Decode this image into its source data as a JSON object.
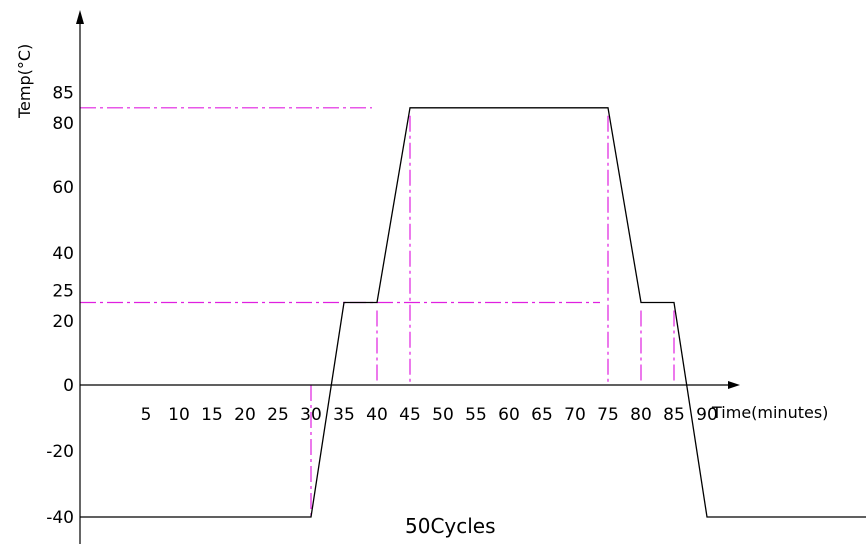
{
  "chart_data": {
    "type": "line",
    "ylabel": "Temp(°C)",
    "xlabel": "Time(minutes)",
    "caption": "50Cycles",
    "x_ticks": [
      5,
      10,
      15,
      20,
      25,
      30,
      35,
      40,
      45,
      50,
      55,
      60,
      65,
      70,
      75,
      80,
      85,
      90
    ],
    "y_ticks": [
      "85",
      "80",
      "60",
      "40",
      "25",
      "20",
      "0",
      "-20",
      "-40"
    ],
    "y_tick_values": [
      85,
      80,
      60,
      40,
      25,
      20,
      0,
      -20,
      -40
    ],
    "xlim": [
      -5,
      119
    ],
    "ylim": [
      -48,
      112
    ],
    "profile": [
      {
        "x": -5,
        "y": -40
      },
      {
        "x": 30,
        "y": -40
      },
      {
        "x": 35,
        "y": 25
      },
      {
        "x": 40,
        "y": 25
      },
      {
        "x": 45,
        "y": 84
      },
      {
        "x": 75,
        "y": 84
      },
      {
        "x": 80,
        "y": 25
      },
      {
        "x": 85,
        "y": 25
      },
      {
        "x": 90,
        "y": -40
      },
      {
        "x": 119,
        "y": -40
      }
    ],
    "reference_lines": {
      "horizontal": [
        84,
        25
      ],
      "vertical": [
        30,
        40,
        45,
        75,
        80,
        85
      ]
    },
    "colors": {
      "profile": "#000000",
      "reference": "#e020e0",
      "axis": "#000000"
    }
  }
}
